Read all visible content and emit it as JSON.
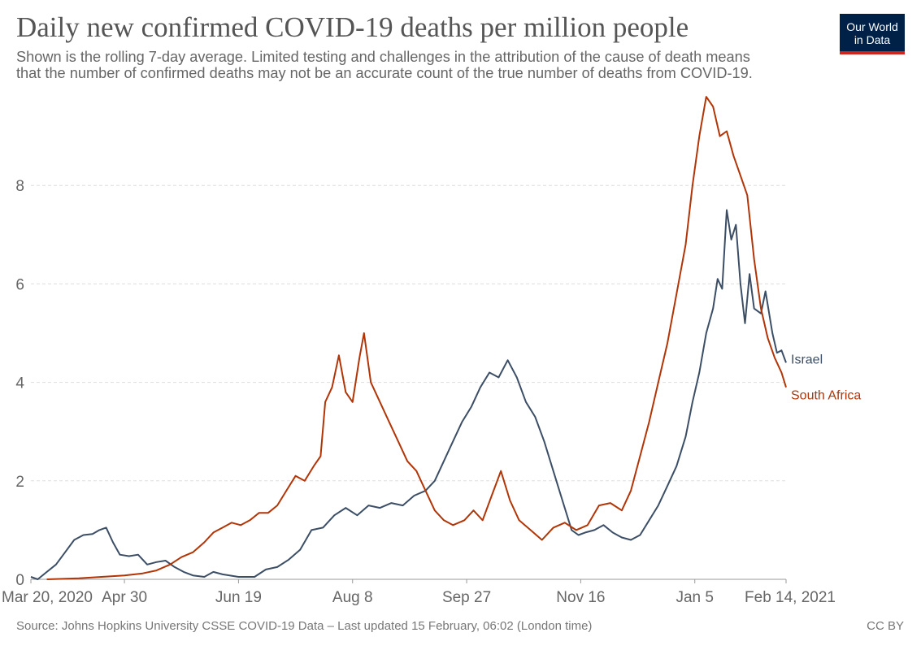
{
  "header": {
    "title": "Daily new confirmed COVID-19 deaths per million people",
    "subtitle_line1": "Shown is the rolling 7-day average. Limited testing and challenges in the attribution of the cause of death means",
    "subtitle_line2": "that the number of confirmed deaths may not be an accurate count of the true number of deaths from COVID-19."
  },
  "logo": {
    "line1": "Our World",
    "line2": "in Data",
    "bg_color": "#002147",
    "accent_color": "#ce261e"
  },
  "footer": {
    "source": "Source: Johns Hopkins University CSSE COVID-19 Data – Last updated 15 February, 06:02 (London time)",
    "license": "CC BY"
  },
  "chart_data": {
    "type": "line",
    "xlabel": "",
    "ylabel": "",
    "x_start": "2020-03-20",
    "x_end": "2021-02-14",
    "ylim": [
      0,
      9.8
    ],
    "grid": "horizontal dashed",
    "legend_placement": "inline-right",
    "y_ticks": [
      0,
      2,
      4,
      6,
      8
    ],
    "x_tick_labels": [
      {
        "date": "2020-03-20",
        "label": "Mar 20, 2020"
      },
      {
        "date": "2020-04-30",
        "label": "Apr 30"
      },
      {
        "date": "2020-06-19",
        "label": "Jun 19"
      },
      {
        "date": "2020-08-08",
        "label": "Aug 8"
      },
      {
        "date": "2020-09-27",
        "label": "Sep 27"
      },
      {
        "date": "2020-11-16",
        "label": "Nov 16"
      },
      {
        "date": "2021-01-05",
        "label": "Jan 5"
      },
      {
        "date": "2021-02-14",
        "label": "Feb 14, 2021"
      }
    ],
    "series": [
      {
        "name": "Israel",
        "color": "#3c4e66",
        "points": [
          [
            "2020-03-20",
            0.05
          ],
          [
            "2020-03-23",
            0.0
          ],
          [
            "2020-03-27",
            0.15
          ],
          [
            "2020-03-31",
            0.3
          ],
          [
            "2020-04-04",
            0.55
          ],
          [
            "2020-04-08",
            0.8
          ],
          [
            "2020-04-12",
            0.9
          ],
          [
            "2020-04-16",
            0.92
          ],
          [
            "2020-04-19",
            1.0
          ],
          [
            "2020-04-22",
            1.05
          ],
          [
            "2020-04-25",
            0.75
          ],
          [
            "2020-04-28",
            0.5
          ],
          [
            "2020-05-02",
            0.47
          ],
          [
            "2020-05-06",
            0.5
          ],
          [
            "2020-05-10",
            0.3
          ],
          [
            "2020-05-14",
            0.35
          ],
          [
            "2020-05-18",
            0.38
          ],
          [
            "2020-05-22",
            0.25
          ],
          [
            "2020-05-26",
            0.15
          ],
          [
            "2020-05-30",
            0.08
          ],
          [
            "2020-06-04",
            0.05
          ],
          [
            "2020-06-08",
            0.15
          ],
          [
            "2020-06-12",
            0.1
          ],
          [
            "2020-06-19",
            0.05
          ],
          [
            "2020-06-26",
            0.05
          ],
          [
            "2020-07-01",
            0.2
          ],
          [
            "2020-07-06",
            0.25
          ],
          [
            "2020-07-11",
            0.4
          ],
          [
            "2020-07-16",
            0.6
          ],
          [
            "2020-07-21",
            1.0
          ],
          [
            "2020-07-26",
            1.05
          ],
          [
            "2020-07-31",
            1.3
          ],
          [
            "2020-08-05",
            1.45
          ],
          [
            "2020-08-10",
            1.3
          ],
          [
            "2020-08-15",
            1.5
          ],
          [
            "2020-08-20",
            1.45
          ],
          [
            "2020-08-25",
            1.55
          ],
          [
            "2020-08-30",
            1.5
          ],
          [
            "2020-09-04",
            1.7
          ],
          [
            "2020-09-09",
            1.8
          ],
          [
            "2020-09-13",
            2.0
          ],
          [
            "2020-09-17",
            2.4
          ],
          [
            "2020-09-21",
            2.8
          ],
          [
            "2020-09-25",
            3.2
          ],
          [
            "2020-09-29",
            3.5
          ],
          [
            "2020-10-03",
            3.9
          ],
          [
            "2020-10-07",
            4.2
          ],
          [
            "2020-10-11",
            4.1
          ],
          [
            "2020-10-15",
            4.45
          ],
          [
            "2020-10-19",
            4.1
          ],
          [
            "2020-10-23",
            3.6
          ],
          [
            "2020-10-27",
            3.3
          ],
          [
            "2020-10-31",
            2.8
          ],
          [
            "2020-11-04",
            2.2
          ],
          [
            "2020-11-08",
            1.6
          ],
          [
            "2020-11-12",
            1.0
          ],
          [
            "2020-11-15",
            0.9
          ],
          [
            "2020-11-18",
            0.95
          ],
          [
            "2020-11-22",
            1.0
          ],
          [
            "2020-11-26",
            1.1
          ],
          [
            "2020-11-30",
            0.95
          ],
          [
            "2020-12-04",
            0.85
          ],
          [
            "2020-12-08",
            0.8
          ],
          [
            "2020-12-12",
            0.9
          ],
          [
            "2020-12-16",
            1.2
          ],
          [
            "2020-12-20",
            1.5
          ],
          [
            "2020-12-24",
            1.9
          ],
          [
            "2020-12-28",
            2.3
          ],
          [
            "2021-01-01",
            2.9
          ],
          [
            "2021-01-04",
            3.6
          ],
          [
            "2021-01-07",
            4.2
          ],
          [
            "2021-01-10",
            5.0
          ],
          [
            "2021-01-13",
            5.5
          ],
          [
            "2021-01-15",
            6.1
          ],
          [
            "2021-01-17",
            5.9
          ],
          [
            "2021-01-19",
            7.5
          ],
          [
            "2021-01-21",
            6.9
          ],
          [
            "2021-01-23",
            7.2
          ],
          [
            "2021-01-25",
            6.0
          ],
          [
            "2021-01-27",
            5.2
          ],
          [
            "2021-01-29",
            6.2
          ],
          [
            "2021-01-31",
            5.5
          ],
          [
            "2021-02-03",
            5.4
          ],
          [
            "2021-02-05",
            5.85
          ],
          [
            "2021-02-08",
            5.0
          ],
          [
            "2021-02-10",
            4.6
          ],
          [
            "2021-02-12",
            4.65
          ],
          [
            "2021-02-14",
            4.4
          ]
        ]
      },
      {
        "name": "South Africa",
        "color": "#b13507",
        "points": [
          [
            "2020-03-27",
            0.0
          ],
          [
            "2020-04-10",
            0.02
          ],
          [
            "2020-04-20",
            0.05
          ],
          [
            "2020-04-30",
            0.08
          ],
          [
            "2020-05-08",
            0.12
          ],
          [
            "2020-05-14",
            0.18
          ],
          [
            "2020-05-20",
            0.3
          ],
          [
            "2020-05-25",
            0.45
          ],
          [
            "2020-05-30",
            0.55
          ],
          [
            "2020-06-04",
            0.75
          ],
          [
            "2020-06-08",
            0.95
          ],
          [
            "2020-06-12",
            1.05
          ],
          [
            "2020-06-16",
            1.15
          ],
          [
            "2020-06-20",
            1.1
          ],
          [
            "2020-06-24",
            1.2
          ],
          [
            "2020-06-28",
            1.35
          ],
          [
            "2020-07-02",
            1.35
          ],
          [
            "2020-07-06",
            1.5
          ],
          [
            "2020-07-10",
            1.8
          ],
          [
            "2020-07-14",
            2.1
          ],
          [
            "2020-07-18",
            2.0
          ],
          [
            "2020-07-22",
            2.3
          ],
          [
            "2020-07-25",
            2.5
          ],
          [
            "2020-07-27",
            3.6
          ],
          [
            "2020-07-30",
            3.9
          ],
          [
            "2020-08-02",
            4.55
          ],
          [
            "2020-08-05",
            3.8
          ],
          [
            "2020-08-08",
            3.6
          ],
          [
            "2020-08-11",
            4.5
          ],
          [
            "2020-08-13",
            5.0
          ],
          [
            "2020-08-16",
            4.0
          ],
          [
            "2020-08-20",
            3.6
          ],
          [
            "2020-08-24",
            3.2
          ],
          [
            "2020-08-28",
            2.8
          ],
          [
            "2020-09-01",
            2.4
          ],
          [
            "2020-09-05",
            2.2
          ],
          [
            "2020-09-09",
            1.8
          ],
          [
            "2020-09-13",
            1.4
          ],
          [
            "2020-09-17",
            1.2
          ],
          [
            "2020-09-21",
            1.1
          ],
          [
            "2020-09-26",
            1.2
          ],
          [
            "2020-09-30",
            1.4
          ],
          [
            "2020-10-04",
            1.2
          ],
          [
            "2020-10-08",
            1.7
          ],
          [
            "2020-10-12",
            2.2
          ],
          [
            "2020-10-16",
            1.6
          ],
          [
            "2020-10-20",
            1.2
          ],
          [
            "2020-10-25",
            1.0
          ],
          [
            "2020-10-30",
            0.8
          ],
          [
            "2020-11-04",
            1.05
          ],
          [
            "2020-11-09",
            1.15
          ],
          [
            "2020-11-14",
            1.0
          ],
          [
            "2020-11-19",
            1.1
          ],
          [
            "2020-11-24",
            1.5
          ],
          [
            "2020-11-29",
            1.55
          ],
          [
            "2020-12-04",
            1.4
          ],
          [
            "2020-12-08",
            1.8
          ],
          [
            "2020-12-12",
            2.5
          ],
          [
            "2020-12-16",
            3.2
          ],
          [
            "2020-12-20",
            4.0
          ],
          [
            "2020-12-24",
            4.8
          ],
          [
            "2020-12-28",
            5.8
          ],
          [
            "2021-01-01",
            6.8
          ],
          [
            "2021-01-04",
            8.0
          ],
          [
            "2021-01-07",
            9.0
          ],
          [
            "2021-01-10",
            9.8
          ],
          [
            "2021-01-13",
            9.6
          ],
          [
            "2021-01-16",
            9.0
          ],
          [
            "2021-01-19",
            9.1
          ],
          [
            "2021-01-22",
            8.6
          ],
          [
            "2021-01-25",
            8.2
          ],
          [
            "2021-01-28",
            7.8
          ],
          [
            "2021-01-31",
            6.5
          ],
          [
            "2021-02-03",
            5.5
          ],
          [
            "2021-02-06",
            4.9
          ],
          [
            "2021-02-09",
            4.5
          ],
          [
            "2021-02-12",
            4.2
          ],
          [
            "2021-02-14",
            3.9
          ]
        ]
      }
    ]
  }
}
